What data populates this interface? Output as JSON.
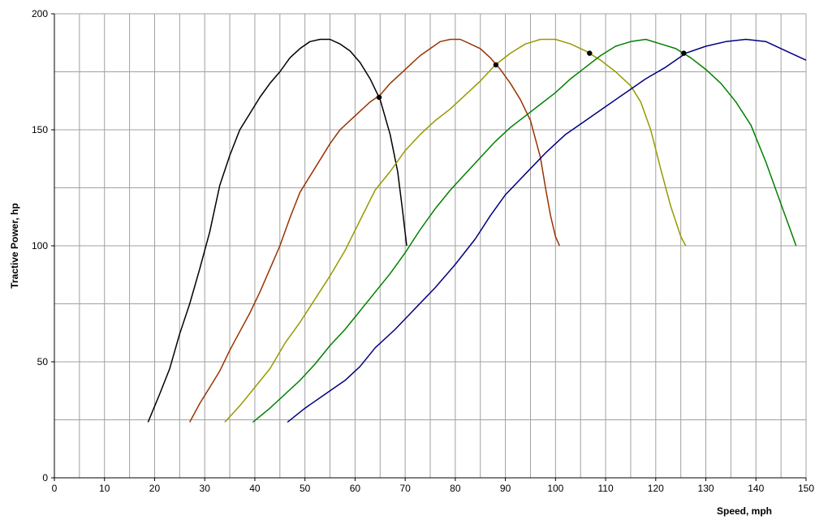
{
  "chart_data": {
    "type": "line",
    "title": "",
    "xlabel": "Speed, mph",
    "ylabel": "Tractive Power, hp",
    "xlim": [
      0,
      150
    ],
    "ylim": [
      0,
      200
    ],
    "x_ticks": [
      0,
      10,
      20,
      30,
      40,
      50,
      60,
      70,
      80,
      90,
      100,
      110,
      120,
      130,
      140,
      150
    ],
    "y_ticks": [
      0,
      50,
      100,
      150,
      200
    ],
    "grid": "vertical every 5 mph, horizontal every 25 hp",
    "legend": "none",
    "series": [
      {
        "color": "#000000",
        "points": [
          [
            18.7,
            24
          ],
          [
            21,
            36
          ],
          [
            23,
            47
          ],
          [
            25,
            62
          ],
          [
            27,
            75
          ],
          [
            29,
            90
          ],
          [
            31,
            106
          ],
          [
            33,
            126
          ],
          [
            35,
            139
          ],
          [
            37,
            150
          ],
          [
            39,
            157
          ],
          [
            41,
            164
          ],
          [
            43,
            170
          ],
          [
            45,
            175
          ],
          [
            47,
            181
          ],
          [
            49,
            185
          ],
          [
            51,
            188
          ],
          [
            53,
            189
          ],
          [
            55,
            189
          ],
          [
            57,
            187
          ],
          [
            59,
            184
          ],
          [
            61,
            179
          ],
          [
            63,
            172
          ],
          [
            65,
            163
          ],
          [
            67,
            148
          ],
          [
            68.5,
            132
          ],
          [
            69.5,
            115
          ],
          [
            70.3,
            100
          ]
        ]
      },
      {
        "color": "#993300",
        "points": [
          [
            27,
            24
          ],
          [
            29,
            32
          ],
          [
            31,
            39
          ],
          [
            33,
            46
          ],
          [
            35,
            55
          ],
          [
            37,
            63
          ],
          [
            39,
            71
          ],
          [
            41,
            80
          ],
          [
            43,
            90
          ],
          [
            45,
            100
          ],
          [
            47,
            112
          ],
          [
            49,
            123
          ],
          [
            51,
            130
          ],
          [
            53,
            137
          ],
          [
            55,
            144
          ],
          [
            57,
            150
          ],
          [
            59,
            154
          ],
          [
            61,
            158
          ],
          [
            63,
            162
          ],
          [
            65,
            165
          ],
          [
            67,
            170
          ],
          [
            69,
            174
          ],
          [
            71,
            178
          ],
          [
            73,
            182
          ],
          [
            75,
            185
          ],
          [
            77,
            188
          ],
          [
            79,
            189
          ],
          [
            81,
            189
          ],
          [
            83,
            187
          ],
          [
            85,
            185
          ],
          [
            87,
            181
          ],
          [
            89,
            176
          ],
          [
            91,
            170
          ],
          [
            93,
            163
          ],
          [
            95,
            154
          ],
          [
            97,
            138
          ],
          [
            98,
            125
          ],
          [
            99,
            113
          ],
          [
            100,
            104
          ],
          [
            100.8,
            100
          ]
        ]
      },
      {
        "color": "#999900",
        "points": [
          [
            34,
            24
          ],
          [
            37,
            31
          ],
          [
            40,
            39
          ],
          [
            43,
            47
          ],
          [
            46,
            58
          ],
          [
            49,
            67
          ],
          [
            52,
            77
          ],
          [
            55,
            87
          ],
          [
            58,
            98
          ],
          [
            61,
            111
          ],
          [
            64,
            124
          ],
          [
            67,
            132
          ],
          [
            70,
            141
          ],
          [
            73,
            148
          ],
          [
            76,
            154
          ],
          [
            79,
            159
          ],
          [
            82,
            165
          ],
          [
            85,
            171
          ],
          [
            88,
            178
          ],
          [
            91,
            183
          ],
          [
            94,
            187
          ],
          [
            97,
            189
          ],
          [
            100,
            189
          ],
          [
            103,
            187
          ],
          [
            106,
            184
          ],
          [
            109,
            180
          ],
          [
            112,
            175
          ],
          [
            115,
            169
          ],
          [
            117,
            162
          ],
          [
            119,
            150
          ],
          [
            121,
            133
          ],
          [
            123,
            117
          ],
          [
            125,
            104
          ],
          [
            126,
            100
          ]
        ]
      },
      {
        "color": "#008000",
        "points": [
          [
            39.6,
            24
          ],
          [
            43,
            30
          ],
          [
            46,
            36
          ],
          [
            49,
            42
          ],
          [
            52,
            49
          ],
          [
            55,
            57
          ],
          [
            58,
            64
          ],
          [
            61,
            72
          ],
          [
            64,
            80
          ],
          [
            67,
            88
          ],
          [
            70,
            97
          ],
          [
            73,
            107
          ],
          [
            76,
            116
          ],
          [
            79,
            124
          ],
          [
            82,
            131
          ],
          [
            85,
            138
          ],
          [
            88,
            145
          ],
          [
            91,
            151
          ],
          [
            94,
            156
          ],
          [
            97,
            161
          ],
          [
            100,
            166
          ],
          [
            103,
            172
          ],
          [
            106,
            177
          ],
          [
            109,
            182
          ],
          [
            112,
            186
          ],
          [
            115,
            188
          ],
          [
            118,
            189
          ],
          [
            121,
            187
          ],
          [
            124,
            185
          ],
          [
            127,
            181
          ],
          [
            130,
            176
          ],
          [
            133,
            170
          ],
          [
            136,
            162
          ],
          [
            139,
            152
          ],
          [
            142,
            136
          ],
          [
            145,
            118
          ],
          [
            147,
            106
          ],
          [
            148,
            100
          ]
        ]
      },
      {
        "color": "#000080",
        "points": [
          [
            46.5,
            24
          ],
          [
            50,
            30
          ],
          [
            54,
            36
          ],
          [
            58,
            42
          ],
          [
            61,
            48
          ],
          [
            64,
            56
          ],
          [
            68,
            64
          ],
          [
            72,
            73
          ],
          [
            76,
            82
          ],
          [
            80,
            92
          ],
          [
            84,
            103
          ],
          [
            87,
            113
          ],
          [
            90,
            122
          ],
          [
            94,
            131
          ],
          [
            98,
            140
          ],
          [
            102,
            148
          ],
          [
            106,
            154
          ],
          [
            110,
            160
          ],
          [
            114,
            166
          ],
          [
            118,
            172
          ],
          [
            122,
            177
          ],
          [
            126,
            183
          ],
          [
            130,
            186
          ],
          [
            134,
            188
          ],
          [
            138,
            189
          ],
          [
            142,
            188
          ],
          [
            146,
            184
          ],
          [
            150,
            180
          ]
        ]
      }
    ],
    "intersections": [
      [
        64.8,
        164
      ],
      [
        88.1,
        178
      ],
      [
        106.8,
        183
      ],
      [
        125.6,
        183
      ]
    ]
  },
  "axes": {
    "xlabel": "Speed, mph",
    "ylabel": "Tractive Power, hp"
  }
}
